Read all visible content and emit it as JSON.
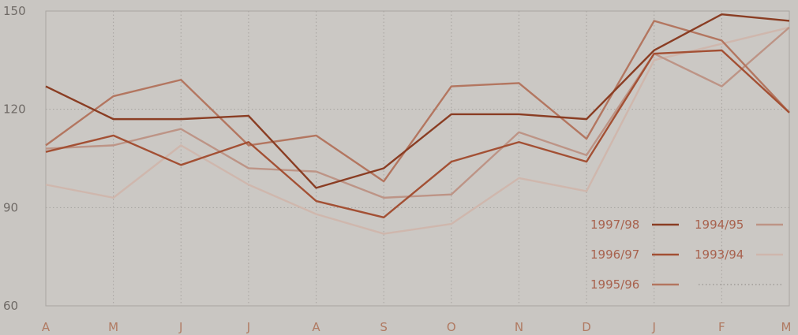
{
  "chart_data": {
    "type": "line",
    "title": "",
    "xlabel": "",
    "ylabel": "",
    "categories": [
      "A",
      "M",
      "J",
      "J",
      "A",
      "S",
      "O",
      "N",
      "D",
      "J",
      "F",
      "M"
    ],
    "ylim": [
      60,
      150
    ],
    "yticks": [
      60,
      90,
      120,
      150
    ],
    "grid": true,
    "legend_position": "bottom-right",
    "series": [
      {
        "name": "1997/98",
        "color": "#8a3d23",
        "values": [
          127,
          117,
          117,
          118,
          96,
          102,
          118.5,
          118.5,
          117,
          138,
          149,
          147
        ]
      },
      {
        "name": "1996/97",
        "color": "#a35034",
        "values": [
          107,
          112,
          103,
          110,
          92,
          87,
          104,
          110,
          104,
          137,
          138,
          119
        ]
      },
      {
        "name": "1995/96",
        "color": "#b37660",
        "values": [
          109,
          124,
          129,
          109,
          112,
          98,
          127,
          128,
          111,
          147,
          141,
          119
        ]
      },
      {
        "name": "1994/95",
        "color": "#bd9486",
        "values": [
          108,
          109,
          114,
          102,
          101,
          93,
          94,
          113,
          106,
          137,
          127,
          145
        ]
      },
      {
        "name": "1993/94",
        "color": "#cfb7ad",
        "values": [
          97,
          93,
          109,
          97,
          88,
          82,
          85,
          99,
          95,
          135,
          140,
          145
        ]
      }
    ]
  }
}
